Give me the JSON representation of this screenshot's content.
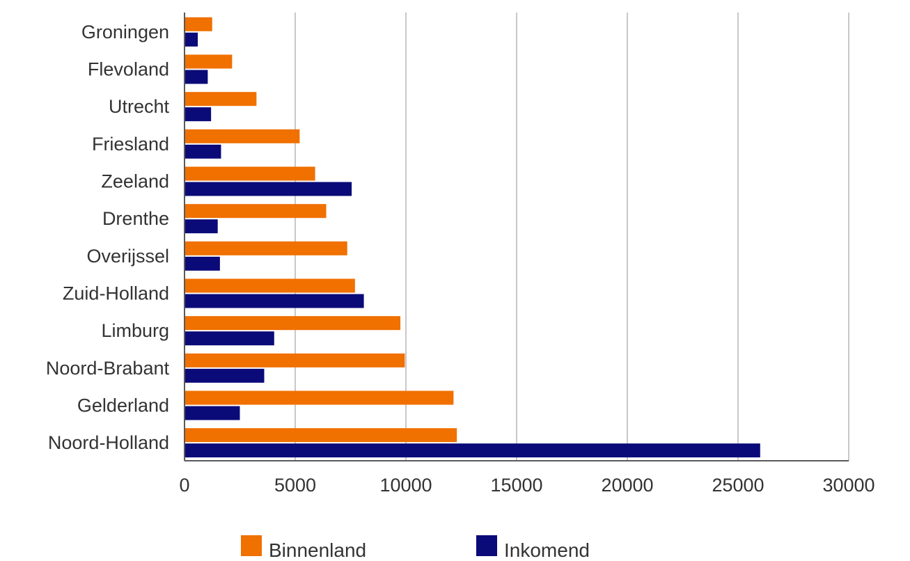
{
  "chart_data": {
    "type": "bar",
    "orientation": "horizontal",
    "categories": [
      "Groningen",
      "Flevoland",
      "Utrecht",
      "Friesland",
      "Zeeland",
      "Drenthe",
      "Overijssel",
      "Zuid-Holland",
      "Limburg",
      "Noord-Brabant",
      "Gelderland",
      "Noord-Holland"
    ],
    "series": [
      {
        "name": "Binnenland",
        "color": "#f07000",
        "values": [
          1250,
          2150,
          3250,
          5200,
          5900,
          6400,
          7350,
          7700,
          9750,
          9950,
          12150,
          12300
        ]
      },
      {
        "name": "Inkomend",
        "color": "#0a0a78",
        "values": [
          600,
          1050,
          1200,
          1650,
          7550,
          1500,
          1600,
          8100,
          4050,
          3600,
          2500,
          26000
        ]
      }
    ],
    "xlim": [
      0,
      30000
    ],
    "xticks": [
      "0",
      "5000",
      "10000",
      "15000",
      "20000",
      "25000",
      "30000"
    ],
    "grid": "vertical",
    "legend_position": "bottom"
  }
}
